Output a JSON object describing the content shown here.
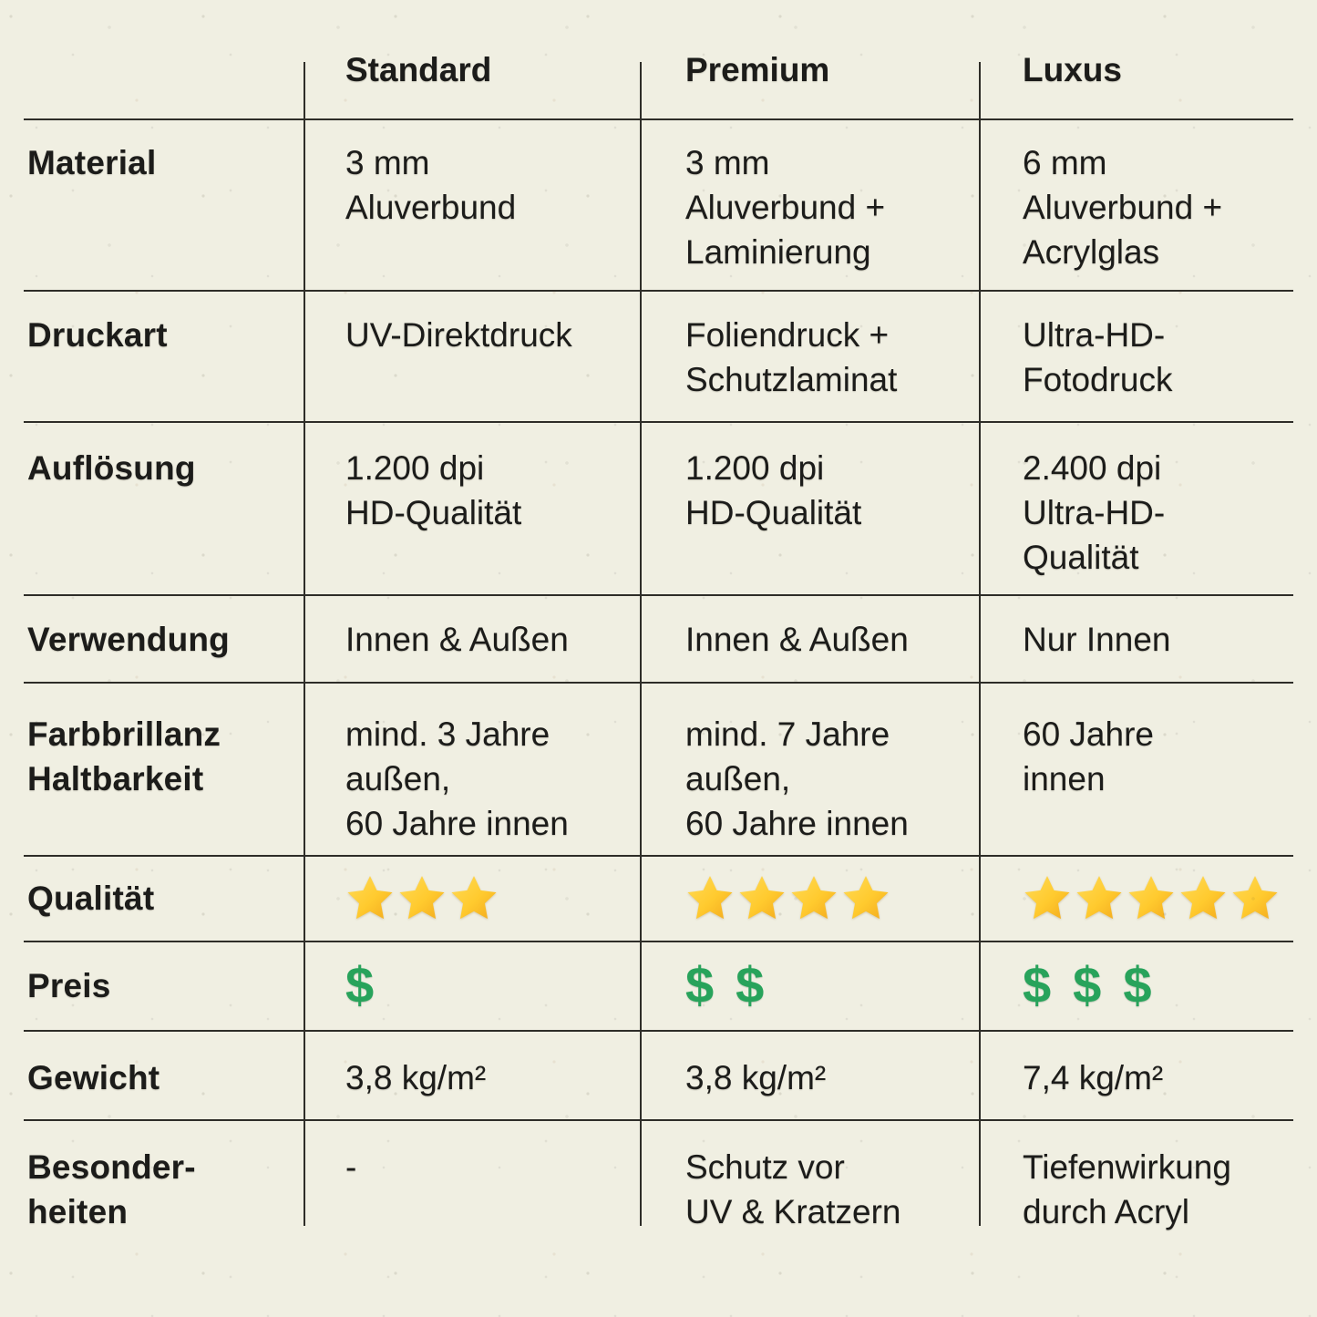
{
  "table": {
    "columns": [
      {
        "id": "standard",
        "label": "Standard"
      },
      {
        "id": "premium",
        "label": "Premium"
      },
      {
        "id": "luxus",
        "label": "Luxus"
      }
    ],
    "rows": [
      {
        "id": "material",
        "label": "Material",
        "type": "text",
        "values": [
          "3 mm\nAluverbund",
          "3 mm\nAluverbund +\nLaminierung",
          "6 mm\nAluverbund +\nAcrylglas"
        ]
      },
      {
        "id": "druckart",
        "label": "Druckart",
        "type": "text",
        "values": [
          "UV-Direktdruck",
          "Foliendruck +\nSchutzlaminat",
          "Ultra-HD-\nFotodruck"
        ]
      },
      {
        "id": "aufloesung",
        "label": "Auflösung",
        "type": "text",
        "values": [
          "1.200 dpi\nHD-Qualität",
          "1.200 dpi\nHD-Qualität",
          "2.400 dpi\nUltra-HD-\nQualität"
        ]
      },
      {
        "id": "verwendung",
        "label": "Verwendung",
        "type": "text",
        "values": [
          "Innen & Außen",
          "Innen & Außen",
          "Nur Innen"
        ]
      },
      {
        "id": "farbbrillanz-haltbarkeit",
        "label": "Farbbrillanz\nHaltbarkeit",
        "type": "text",
        "values": [
          "mind. 3 Jahre\naußen,\n60 Jahre innen",
          "mind. 7 Jahre\naußen,\n60 Jahre innen",
          "60 Jahre\ninnen"
        ]
      },
      {
        "id": "qualitaet",
        "label": "Qualität",
        "type": "stars",
        "counts": [
          3,
          4,
          5
        ]
      },
      {
        "id": "preis",
        "label": "Preis",
        "type": "dollars",
        "counts": [
          1,
          2,
          3
        ]
      },
      {
        "id": "gewicht",
        "label": "Gewicht",
        "type": "text",
        "values": [
          "3,8 kg/m²",
          "3,8 kg/m²",
          "7,4 kg/m²"
        ]
      },
      {
        "id": "besonderheiten",
        "label": "Besonder-\nheiten",
        "type": "text",
        "values": [
          "-",
          "Schutz vor\nUV & Kratzern",
          "Tiefenwirkung\ndurch Acryl"
        ]
      }
    ]
  },
  "icons": {
    "star_glyph": "★",
    "dollar_glyph": "$"
  },
  "colors": {
    "paper": "#f0efe2",
    "text": "#1c1c1a",
    "line": "#2e2d28",
    "star_light": "#ffdb58",
    "star_mid": "#ffca2e",
    "star_dark": "#f2a81d",
    "dollar": "#28a35b"
  },
  "chart_data": {
    "type": "table",
    "title": "",
    "columns": [
      "",
      "Standard",
      "Premium",
      "Luxus"
    ],
    "rows": [
      [
        "Material",
        "3 mm Aluverbund",
        "3 mm Aluverbund + Laminierung",
        "6 mm Aluverbund + Acrylglas"
      ],
      [
        "Druckart",
        "UV-Direktdruck",
        "Foliendruck + Schutzlaminat",
        "Ultra-HD-Fotodruck"
      ],
      [
        "Auflösung",
        "1.200 dpi HD-Qualität",
        "1.200 dpi HD-Qualität",
        "2.400 dpi Ultra-HD-Qualität"
      ],
      [
        "Verwendung",
        "Innen & Außen",
        "Innen & Außen",
        "Nur Innen"
      ],
      [
        "Farbbrillanz Haltbarkeit",
        "mind. 3 Jahre außen, 60 Jahre innen",
        "mind. 7 Jahre außen, 60 Jahre innen",
        "60 Jahre innen"
      ],
      [
        "Qualität",
        "3 Sterne",
        "4 Sterne",
        "5 Sterne"
      ],
      [
        "Preis",
        "$",
        "$ $",
        "$ $ $"
      ],
      [
        "Gewicht",
        "3,8 kg/m²",
        "3,8 kg/m²",
        "7,4 kg/m²"
      ],
      [
        "Besonderheiten",
        "-",
        "Schutz vor UV & Kratzern",
        "Tiefenwirkung durch Acryl"
      ]
    ]
  }
}
